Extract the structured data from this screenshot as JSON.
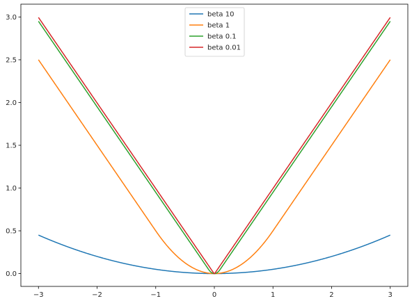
{
  "chart_data": {
    "type": "line",
    "title": "",
    "xlabel": "",
    "ylabel": "",
    "xlim": [
      -3.3,
      3.3
    ],
    "ylim": [
      -0.15,
      3.15
    ],
    "xticks": [
      -3,
      -2,
      -1,
      0,
      1,
      2,
      3
    ],
    "xtick_labels": [
      "−3",
      "−2",
      "−1",
      "0",
      "1",
      "2",
      "3"
    ],
    "yticks": [
      0.0,
      0.5,
      1.0,
      1.5,
      2.0,
      2.5,
      3.0
    ],
    "ytick_labels": [
      "0.0",
      "0.5",
      "1.0",
      "1.5",
      "2.0",
      "2.5",
      "3.0"
    ],
    "grid": false,
    "legend_position": "top-center",
    "x_range": [
      -3,
      3
    ],
    "series": [
      {
        "name": "beta 10",
        "beta": 10,
        "color": "#1f77b4"
      },
      {
        "name": "beta 1",
        "beta": 1,
        "color": "#ff7f0e"
      },
      {
        "name": "beta 0.1",
        "beta": 0.1,
        "color": "#2ca02c"
      },
      {
        "name": "beta 0.01",
        "beta": 0.01,
        "color": "#d62728"
      }
    ]
  }
}
